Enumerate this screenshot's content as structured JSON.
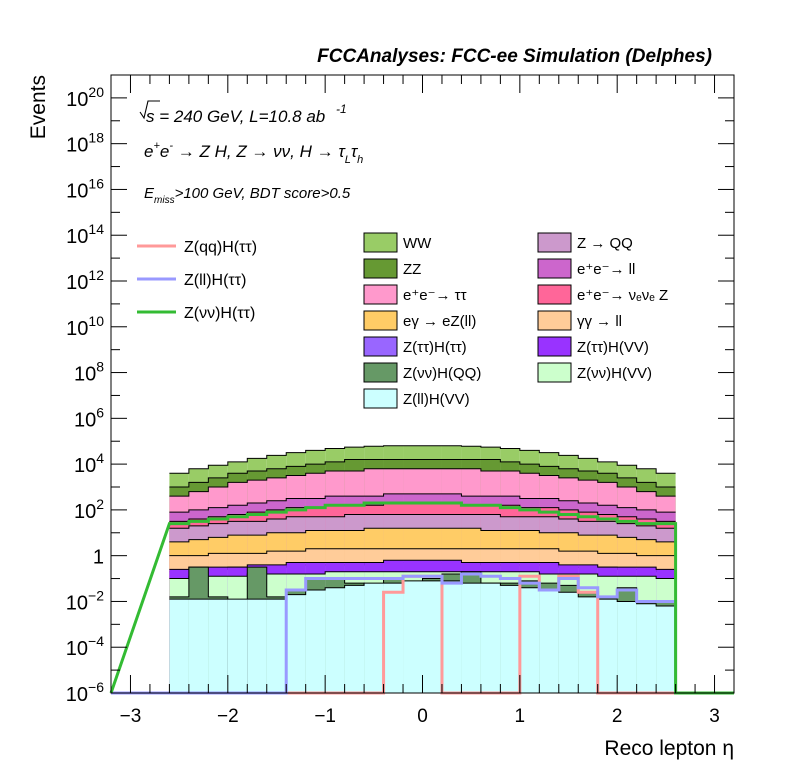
{
  "chart_data": {
    "type": "bar",
    "title": "FCCAnalyses: FCC-ee Simulation (Delphes)",
    "xlabel": "Reco lepton η",
    "ylabel": "Events",
    "xlim": [
      -3.2,
      3.2
    ],
    "ylim_log10": [
      -6,
      21
    ],
    "log_y": true,
    "x_ticks": [
      "−3",
      "−2",
      "−1",
      "0",
      "1",
      "2",
      "3"
    ],
    "y_ticks": [
      {
        "base": "10",
        "exp": "−6",
        "log": -6
      },
      {
        "base": "10",
        "exp": "−4",
        "log": -4
      },
      {
        "base": "10",
        "exp": "−2",
        "log": -2
      },
      {
        "base": "1",
        "exp": "",
        "log": 0
      },
      {
        "base": "10",
        "exp": "2",
        "log": 2
      },
      {
        "base": "10",
        "exp": "4",
        "log": 4
      },
      {
        "base": "10",
        "exp": "6",
        "log": 6
      },
      {
        "base": "10",
        "exp": "8",
        "log": 8
      },
      {
        "base": "10",
        "exp": "10",
        "log": 10
      },
      {
        "base": "10",
        "exp": "12",
        "log": 12
      },
      {
        "base": "10",
        "exp": "14",
        "log": 14
      },
      {
        "base": "10",
        "exp": "16",
        "log": 16
      },
      {
        "base": "10",
        "exp": "18",
        "log": 18
      },
      {
        "base": "10",
        "exp": "20",
        "log": 20
      }
    ],
    "annotations": {
      "line1_main": "s = 240 GeV, L=10.8 ab",
      "line1_sup": "-1",
      "line2_a": "e",
      "line2_sup1": "+",
      "line2_b": "e",
      "line2_sup2": "-",
      "line2_c": " → Z H, Z  → νν, H → τ",
      "line2_sub1": "L",
      "line2_d": "τ",
      "line2_sub2": "h",
      "line3_a": "E",
      "line3_sub": "miss",
      "line3_b": ">100 GeV, BDT score>0.5"
    },
    "bin_edges": [
      -2.6,
      -2.4,
      -2.2,
      -2.0,
      -1.8,
      -1.6,
      -1.4,
      -1.2,
      -1.0,
      -0.8,
      -0.6,
      -0.4,
      -0.2,
      0.0,
      0.2,
      0.4,
      0.6,
      0.8,
      1.0,
      1.2,
      1.4,
      1.6,
      1.8,
      2.0,
      2.2,
      2.4,
      2.6
    ],
    "stack_totals_log10": [
      3.6,
      3.8,
      3.95,
      4.1,
      4.25,
      4.38,
      4.5,
      4.6,
      4.68,
      4.74,
      4.78,
      4.8,
      4.8,
      4.8,
      4.8,
      4.78,
      4.74,
      4.68,
      4.6,
      4.5,
      4.38,
      4.25,
      4.1,
      3.95,
      3.8,
      3.6
    ],
    "series": [
      {
        "name": "Z(ll)H(VV)",
        "color": "#ccffff",
        "log10_values": [
          -1.9,
          -1.9,
          -1.9,
          -1.9,
          -1.9,
          -1.9,
          -1.7,
          -1.5,
          -1.4,
          -1.3,
          -1.2,
          -1.2,
          -1.1,
          -1.1,
          -1.1,
          -1.2,
          -1.2,
          -1.3,
          -1.4,
          -1.5,
          -1.6,
          -1.8,
          -1.9,
          -2.0,
          -2.1,
          -2.2
        ]
      },
      {
        "name": "Z(νν)H(QQ)",
        "color": "#669966",
        "log10_values": [
          -1.8,
          -0.5,
          -1.8,
          -6.0,
          -0.5,
          -1.8,
          -1.5,
          -1.0,
          -1.0,
          -1.2,
          -1.3,
          -1.0,
          -1.5,
          -1.0,
          -0.8,
          -0.7,
          -1.2,
          -1.2,
          -1.1,
          -1.2,
          -1.3,
          -1.6,
          -1.8,
          -1.4,
          -2.0,
          -2.0
        ]
      },
      {
        "name": "Z(νν)H(VV)",
        "color": "#ccffcc",
        "log10_values": [
          -1.0,
          -0.9,
          -0.9,
          -0.9,
          -0.8,
          -0.8,
          -0.8,
          -0.8,
          -0.7,
          -0.7,
          -0.7,
          -0.7,
          -0.7,
          -0.7,
          -0.7,
          -0.7,
          -0.7,
          -0.7,
          -0.7,
          -0.8,
          -0.8,
          -0.8,
          -0.9,
          -0.9,
          -0.9,
          -1.0
        ]
      },
      {
        "name": "Z(ττ)H(VV)",
        "color": "#9933ff",
        "log10_values": [
          -0.6,
          -0.5,
          -0.5,
          -0.5,
          -0.4,
          -0.4,
          -0.3,
          -0.3,
          -0.3,
          -0.3,
          -0.3,
          -0.2,
          -0.2,
          -0.2,
          -0.2,
          -0.3,
          -0.3,
          -0.3,
          -0.3,
          -0.3,
          -0.4,
          -0.4,
          -0.5,
          -0.5,
          -0.5,
          -0.6
        ]
      },
      {
        "name": "Z(ττ)H(ττ)",
        "color": "#9966ff",
        "log10_values": [
          -0.7,
          -0.6,
          -0.6,
          -0.5,
          -0.5,
          -0.5,
          -0.4,
          -0.4,
          -0.4,
          -0.4,
          -0.3,
          -0.3,
          -0.3,
          -0.3,
          -0.3,
          -0.3,
          -0.4,
          -0.4,
          -0.4,
          -0.4,
          -0.5,
          -0.5,
          -0.5,
          -0.6,
          -0.6,
          -0.7
        ]
      },
      {
        "name": "γγ → ll",
        "color": "#ffcc99",
        "log10_values": [
          0.0,
          0.0,
          0.1,
          0.1,
          0.1,
          0.2,
          0.2,
          0.3,
          0.3,
          0.3,
          0.3,
          0.3,
          0.3,
          0.3,
          0.3,
          0.3,
          0.3,
          0.3,
          0.3,
          0.3,
          0.2,
          0.2,
          0.1,
          0.1,
          0.0,
          0.0
        ]
      },
      {
        "name": "eγ → eZ(ll)",
        "color": "#ffcc66",
        "log10_values": [
          0.6,
          0.7,
          0.8,
          0.9,
          0.9,
          1.0,
          1.0,
          1.1,
          1.1,
          1.1,
          1.2,
          1.2,
          1.2,
          1.2,
          1.2,
          1.2,
          1.1,
          1.1,
          1.1,
          1.0,
          1.0,
          0.9,
          0.9,
          0.8,
          0.7,
          0.6
        ]
      },
      {
        "name": "Z → QQ",
        "color": "#cc99cc",
        "log10_values": [
          1.2,
          1.3,
          1.4,
          1.5,
          1.5,
          1.6,
          1.7,
          1.7,
          1.7,
          1.8,
          1.8,
          1.8,
          1.8,
          1.8,
          1.8,
          1.8,
          1.8,
          1.7,
          1.7,
          1.7,
          1.6,
          1.5,
          1.5,
          1.4,
          1.3,
          1.2
        ]
      },
      {
        "name": "e⁺e⁻→ νₑνₑ Z",
        "color": "#ff6699",
        "log10_values": [
          1.5,
          1.6,
          1.7,
          1.8,
          1.9,
          2.0,
          2.1,
          2.1,
          2.2,
          2.2,
          2.2,
          2.3,
          2.3,
          2.3,
          2.3,
          2.2,
          2.2,
          2.2,
          2.1,
          2.1,
          2.0,
          1.9,
          1.8,
          1.7,
          1.6,
          1.5
        ]
      },
      {
        "name": "e⁺e⁻→ ll",
        "color": "#cc66cc",
        "log10_values": [
          1.9,
          2.0,
          2.1,
          2.2,
          2.3,
          2.4,
          2.5,
          2.5,
          2.6,
          2.6,
          2.6,
          2.7,
          2.7,
          2.7,
          2.7,
          2.6,
          2.6,
          2.6,
          2.5,
          2.5,
          2.4,
          2.3,
          2.2,
          2.1,
          2.0,
          1.9
        ]
      },
      {
        "name": "e⁺e⁻→ ττ",
        "color": "#ff99cc",
        "log10_values": [
          2.6,
          2.8,
          3.0,
          3.2,
          3.3,
          3.4,
          3.5,
          3.6,
          3.7,
          3.7,
          3.8,
          3.8,
          3.8,
          3.8,
          3.8,
          3.8,
          3.7,
          3.7,
          3.6,
          3.5,
          3.4,
          3.3,
          3.2,
          3.0,
          2.8,
          2.6
        ]
      },
      {
        "name": "ZZ",
        "color": "#669933",
        "log10_values": [
          3.0,
          3.2,
          3.4,
          3.6,
          3.7,
          3.8,
          3.9,
          4.0,
          4.1,
          4.2,
          4.2,
          4.2,
          4.2,
          4.2,
          4.2,
          4.2,
          4.2,
          4.1,
          4.0,
          3.9,
          3.8,
          3.7,
          3.6,
          3.4,
          3.2,
          3.0
        ]
      },
      {
        "name": "WW",
        "color": "#99cc66",
        "log10_values": [
          3.6,
          3.8,
          3.95,
          4.1,
          4.25,
          4.38,
          4.5,
          4.6,
          4.68,
          4.74,
          4.78,
          4.8,
          4.8,
          4.8,
          4.8,
          4.78,
          4.74,
          4.68,
          4.6,
          4.5,
          4.38,
          4.25,
          4.1,
          3.95,
          3.8,
          3.6
        ]
      }
    ],
    "signal_lines": [
      {
        "name": "Z(qq)H(ττ)",
        "color": "#ff9999",
        "log10_values": [
          -6,
          -6,
          -6,
          -6,
          -6,
          -6,
          -6,
          -6,
          -6,
          -6,
          -6,
          -1.6,
          -0.9,
          -0.9,
          -6,
          -6,
          -6,
          -6,
          -0.9,
          -1.5,
          -0.9,
          -1.6,
          -6,
          -6,
          -6,
          -6
        ]
      },
      {
        "name": "Z(ll)H(ττ)",
        "color": "#9999ff",
        "log10_values": [
          -6,
          -6,
          -6,
          -6,
          -6,
          -6,
          -1.5,
          -1.0,
          -1.0,
          -1.0,
          -1.0,
          -1.0,
          -0.9,
          -0.9,
          -1.2,
          -0.8,
          -0.9,
          -1.0,
          -1.2,
          -1.5,
          -1.0,
          -1.4,
          -1.8,
          -1.5,
          -2.0,
          -2.0
        ]
      },
      {
        "name": "Z(νν)H(ττ)",
        "color": "#33bb33",
        "log10_values": [
          1.4,
          1.5,
          1.6,
          1.7,
          1.8,
          1.9,
          2.0,
          2.1,
          2.2,
          2.2,
          2.3,
          2.3,
          2.3,
          2.3,
          2.3,
          2.2,
          2.2,
          2.1,
          2.0,
          1.9,
          1.8,
          1.7,
          1.6,
          1.5,
          1.4,
          1.4
        ]
      }
    ],
    "legend_lines": [
      {
        "label": "Z(qq)H(ττ)",
        "color": "#ff9999"
      },
      {
        "label": "Z(ll)H(ττ)",
        "color": "#9999ff"
      },
      {
        "label": "Z(νν)H(ττ)",
        "color": "#33bb33"
      }
    ],
    "legend_boxes": [
      {
        "label": "WW",
        "color": "#99cc66"
      },
      {
        "label": "Z → QQ",
        "color": "#cc99cc"
      },
      {
        "label": "ZZ",
        "color": "#669933"
      },
      {
        "label": "e⁺e⁻→ ll",
        "color": "#cc66cc"
      },
      {
        "label": "e⁺e⁻→ ττ",
        "color": "#ff99cc"
      },
      {
        "label": "e⁺e⁻→ νₑνₑ Z",
        "color": "#ff6699"
      },
      {
        "label": "eγ → eZ(ll)",
        "color": "#ffcc66"
      },
      {
        "label": "γγ → ll",
        "color": "#ffcc99"
      },
      {
        "label": "Z(ττ)H(ττ)",
        "color": "#9966ff"
      },
      {
        "label": "Z(ττ)H(VV)",
        "color": "#9933ff"
      },
      {
        "label": "Z(νν)H(QQ)",
        "color": "#669966"
      },
      {
        "label": "Z(νν)H(VV)",
        "color": "#ccffcc"
      },
      {
        "label": "Z(ll)H(VV)",
        "color": "#ccffff"
      }
    ],
    "grid": false,
    "legend_position": "top"
  }
}
